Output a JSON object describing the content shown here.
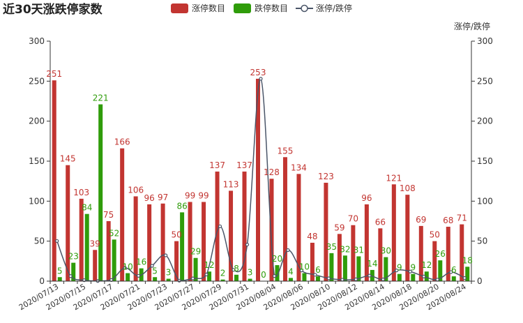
{
  "chart_data": {
    "type": "bar",
    "title": "近30天涨跌停家数",
    "legend": [
      "涨停数目",
      "跌停数目",
      "涨停/跌停"
    ],
    "legend_position": "top-center",
    "right_axis_label": "涨停/跌停",
    "ylim": [
      0,
      300
    ],
    "y_ticks": [
      0,
      50,
      100,
      150,
      200,
      250,
      300
    ],
    "right_ylim": [
      0,
      300
    ],
    "grid": false,
    "categories": [
      "2020/07/13",
      "2020/07/14",
      "2020/07/15",
      "2020/07/16",
      "2020/07/17",
      "2020/07/20",
      "2020/07/21",
      "2020/07/22",
      "2020/07/23",
      "2020/07/24",
      "2020/07/27",
      "2020/07/28",
      "2020/07/29",
      "2020/07/30",
      "2020/07/31",
      "2020/08/03",
      "2020/08/04",
      "2020/08/05",
      "2020/08/06",
      "2020/08/07",
      "2020/08/10",
      "2020/08/11",
      "2020/08/12",
      "2020/08/13",
      "2020/08/14",
      "2020/08/17",
      "2020/08/18",
      "2020/08/19",
      "2020/08/20",
      "2020/08/21",
      "2020/08/24"
    ],
    "shown_x_labels": [
      "2020/07/13",
      "2020/07/15",
      "2020/07/17",
      "2020/07/21",
      "2020/07/23",
      "2020/07/27",
      "2020/07/29",
      "2020/07/31",
      "2020/08/04",
      "2020/08/06",
      "2020/08/10",
      "2020/08/12",
      "2020/08/14",
      "2020/08/18",
      "2020/08/20",
      "2020/08/24"
    ],
    "series": [
      {
        "name": "涨停数目",
        "type": "bar",
        "color": "#c23531",
        "values": [
          251,
          145,
          103,
          39,
          75,
          166,
          106,
          96,
          97,
          50,
          99,
          99,
          137,
          113,
          137,
          253,
          128,
          155,
          134,
          48,
          123,
          59,
          70,
          96,
          66,
          121,
          108,
          69,
          50,
          68,
          71
        ]
      },
      {
        "name": "跌停数目",
        "type": "bar",
        "color": "#2f9c0a",
        "values": [
          5,
          23,
          84,
          221,
          52,
          10,
          16,
          5,
          3,
          86,
          29,
          12,
          2,
          8,
          3,
          0,
          20,
          4,
          10,
          6,
          35,
          32,
          31,
          14,
          30,
          9,
          9,
          12,
          26,
          6,
          18
        ]
      },
      {
        "name": "涨停/跌停",
        "type": "line",
        "color": "#4a5568",
        "axis": "right",
        "values": [
          50.2,
          6.3,
          1.2,
          0.2,
          1.4,
          16.6,
          6.6,
          19.2,
          32.3,
          0.6,
          3.4,
          8.3,
          68.5,
          14.1,
          45.7,
          253,
          6.4,
          38.8,
          13.4,
          8,
          3.5,
          1.8,
          2.3,
          6.9,
          2.2,
          13.4,
          12,
          5.8,
          1.9,
          11.3,
          3.9
        ]
      }
    ]
  }
}
